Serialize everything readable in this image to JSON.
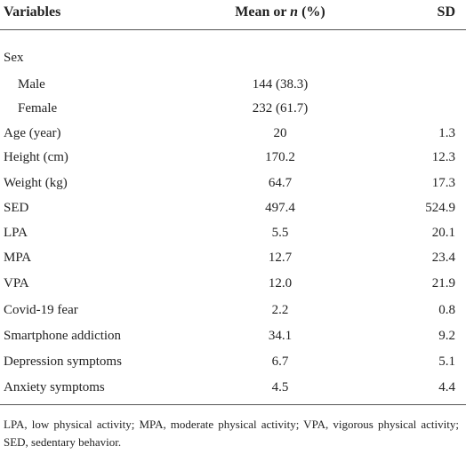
{
  "table": {
    "header": {
      "variables": "Variables",
      "mean": [
        "Mean or ",
        "n",
        " (%)"
      ],
      "sd": "SD"
    },
    "rows": [
      {
        "label": "Sex",
        "rows": [
          {
            "label": "Male",
            "mean": "144 (38.3)"
          },
          {
            "label": "Female",
            "mean": "232 (61.7)"
          }
        ]
      },
      {
        "label": "Age (year)",
        "mean": "20",
        "sd": "1.3"
      },
      {
        "label": "Height (cm)",
        "mean": "170.2",
        "sd": "12.3"
      },
      {
        "label": "Weight (kg)",
        "mean": "64.7",
        "sd": "17.3"
      },
      {
        "label": "SED",
        "mean": "497.4",
        "sd": "524.9"
      },
      {
        "label": "LPA",
        "mean": "5.5",
        "sd": "20.1"
      },
      {
        "label": "MPA",
        "mean": "12.7",
        "sd": "23.4"
      },
      {
        "label": "VPA",
        "mean": "12.0",
        "sd": "21.9"
      },
      {
        "label": "Covid-19 fear",
        "mean": "2.2",
        "sd": "0.8"
      },
      {
        "label": "Smartphone addiction",
        "mean": "34.1",
        "sd": "9.2"
      },
      {
        "label": "Depression symptoms",
        "mean": "6.7",
        "sd": "5.1"
      },
      {
        "label": "Anxiety symptoms",
        "mean": "4.5",
        "sd": "4.4"
      }
    ],
    "footnote": "LPA, low physical activity; MPA, moderate physical activity; VPA, vigorous physical activity; SED, sedentary behavior."
  }
}
